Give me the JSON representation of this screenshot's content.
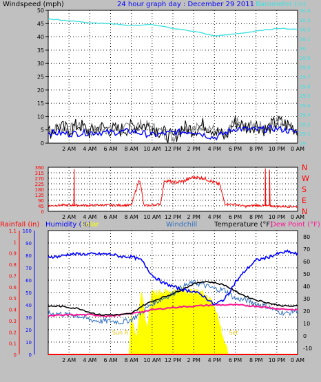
{
  "header": {
    "left_label": "Windspeed (mph)",
    "center_title": "24 hour graph day : December 29 2011",
    "right_label": "Barometer (in)"
  },
  "bottom_header": {
    "rainfall": "Rainfall (in)",
    "humidity": "Humidity (%)",
    "solar": "Solar",
    "windchill": "Windchill",
    "temperature": "Temperature (°F)",
    "dewpoint": "Dew Point (°F)"
  },
  "annotations": {
    "sunrise": "Sun R",
    "sunset": "Set"
  },
  "colors": {
    "background": "#c0c0c0",
    "plot_bg": "#ffffff",
    "wind": "#000000",
    "wind_avg": "#0000ff",
    "gust_shadow": "#808080",
    "barometer": "#40e0e0",
    "direction": "#ff0000",
    "humidity": "#0000ff",
    "temperature": "#000000",
    "windchill": "#3070c0",
    "dewpoint": "#ff1493",
    "solar": "#ffff00",
    "rainfall": "#ff0000"
  },
  "chart_data": [
    {
      "type": "line",
      "x_ticks": [
        "2 AM",
        "4 AM",
        "6 AM",
        "8 AM",
        "10 AM",
        "12 PM",
        "2 PM",
        "4 PM",
        "6 PM",
        "8 PM",
        "10 PM",
        "0 AM"
      ],
      "left_axis": {
        "label": "Windspeed (mph)",
        "ylim": [
          0,
          50
        ],
        "ticks": [
          0,
          5,
          10,
          15,
          20,
          25,
          30,
          35,
          40,
          45,
          50
        ]
      },
      "right_axis": {
        "label": "Barometer (in)",
        "ylim": [
          29.0,
          30.4
        ],
        "ticks": [
          "29",
          "29.1",
          "29.2",
          "29.3",
          "29.4",
          "29.5",
          "29.6",
          "29.7",
          "29.8",
          "29.9",
          "30",
          "30.1",
          "30.2",
          "30.3",
          "30.4"
        ]
      },
      "series": [
        {
          "name": "Barometer (in)",
          "axis": "right",
          "x": [
            0,
            2,
            4,
            6,
            8,
            10,
            12,
            14,
            16,
            18,
            20,
            22,
            24
          ],
          "values": [
            30.31,
            30.29,
            30.27,
            30.26,
            30.24,
            30.25,
            30.21,
            30.18,
            30.13,
            30.15,
            30.18,
            30.21,
            30.2
          ]
        },
        {
          "name": "Windspeed (mph)",
          "axis": "left",
          "x": [
            0,
            1,
            2,
            3,
            4,
            5,
            6,
            7,
            8,
            9,
            10,
            11,
            12,
            13,
            14,
            15,
            16,
            17,
            18,
            19,
            20,
            21,
            22,
            23,
            24
          ],
          "values": [
            4,
            6,
            5,
            7,
            4,
            6,
            5,
            5,
            6,
            7,
            6,
            4,
            2,
            6,
            5,
            7,
            5,
            2,
            8,
            6,
            7,
            5,
            8,
            7,
            5
          ]
        },
        {
          "name": "Wind average",
          "axis": "left",
          "x": [
            0,
            2,
            4,
            6,
            8,
            10,
            12,
            14,
            16,
            18,
            20,
            22,
            24
          ],
          "values": [
            4,
            3.5,
            4,
            4,
            4.5,
            3,
            4,
            4.5,
            2,
            5.5,
            5,
            5.5,
            4
          ]
        }
      ],
      "grid": true
    },
    {
      "type": "line",
      "x_ticks": [
        "2 AM",
        "4 AM",
        "6 AM",
        "8 AM",
        "10 AM",
        "12 PM",
        "2 PM",
        "4 PM",
        "6 PM",
        "8 PM",
        "10 PM",
        "0 AM"
      ],
      "left_axis": {
        "ylim": [
          0,
          360
        ],
        "ticks": [
          0,
          45,
          90,
          135,
          180,
          225,
          270,
          315,
          360
        ]
      },
      "right_axis": {
        "ticks": [
          "N",
          "W",
          "S",
          "E",
          "N"
        ]
      },
      "series": [
        {
          "name": "Wind direction",
          "axis": "left",
          "x": [
            0,
            1,
            2,
            3,
            4,
            5,
            6,
            7,
            8,
            8.8,
            9.2,
            10,
            10.8,
            11.2,
            12,
            13,
            14,
            15,
            16,
            16.5,
            17,
            18,
            19,
            20,
            21,
            22,
            23,
            24
          ],
          "values": [
            45,
            50,
            50,
            50,
            48,
            52,
            50,
            50,
            50,
            270,
            45,
            50,
            60,
            255,
            235,
            245,
            280,
            270,
            235,
            220,
            60,
            55,
            40,
            50,
            45,
            40,
            40,
            38
          ]
        }
      ],
      "grid": true
    },
    {
      "type": "line",
      "x_ticks": [
        "2 AM",
        "4 AM",
        "6 AM",
        "8 AM",
        "10 AM",
        "12 PM",
        "2 PM",
        "4 PM",
        "6 PM",
        "8 PM",
        "10 PM",
        "0 AM"
      ],
      "left_axis": {
        "label": "Rainfall (in)",
        "ylim": [
          0,
          1.1
        ],
        "ticks": [
          0,
          0.1,
          0.2,
          0.3,
          0.4,
          0.5,
          0.6,
          0.7,
          0.8,
          0.9,
          1,
          1.1
        ]
      },
      "left_axis_2": {
        "label": "Humidity (%)",
        "ylim": [
          0,
          100
        ],
        "ticks": [
          0,
          10,
          20,
          30,
          40,
          50,
          60,
          70,
          80,
          90,
          100
        ]
      },
      "right_axis": {
        "label": "Temperature (°F)",
        "ylim": [
          -15,
          85
        ],
        "ticks": [
          -10,
          0,
          10,
          20,
          30,
          40,
          50,
          60,
          70,
          80
        ]
      },
      "series": [
        {
          "name": "Humidity (%)",
          "axis": "humidity",
          "x": [
            0,
            1,
            2,
            3,
            4,
            5,
            6,
            7,
            8,
            9,
            10,
            11,
            12,
            13,
            14,
            15,
            16,
            17,
            18,
            19,
            20,
            21,
            22,
            23,
            24
          ],
          "values": [
            79,
            79,
            81,
            81,
            81,
            81,
            81,
            79,
            79,
            76,
            64,
            58,
            55,
            52,
            51,
            47,
            40,
            45,
            58,
            68,
            76,
            78,
            81,
            83,
            81
          ]
        },
        {
          "name": "Temperature (°F)",
          "axis": "temp",
          "x": [
            0,
            1,
            2,
            3,
            4,
            5,
            6,
            7,
            8,
            9,
            10,
            11,
            12,
            13,
            14,
            15,
            16,
            17,
            18,
            19,
            20,
            21,
            22,
            23,
            24
          ],
          "values": [
            24,
            24,
            23,
            22,
            19,
            17,
            17,
            17,
            18,
            24,
            28,
            31,
            34,
            38,
            42,
            44,
            43,
            41,
            36,
            32,
            29,
            27,
            25,
            24,
            24
          ]
        },
        {
          "name": "Windchill",
          "axis": "temp",
          "x": [
            0,
            1,
            2,
            3,
            4,
            5,
            6,
            7,
            8,
            9,
            10,
            11,
            12,
            13,
            14,
            15,
            16,
            17,
            18,
            19,
            20,
            21,
            22,
            23,
            24
          ],
          "values": [
            18,
            18,
            17,
            16,
            13,
            12,
            12,
            11,
            13,
            19,
            26,
            30,
            34,
            40,
            43,
            41,
            38,
            37,
            30,
            29,
            26,
            24,
            20,
            18,
            21
          ]
        },
        {
          "name": "Dew Point (°F)",
          "axis": "temp",
          "x": [
            0,
            2,
            4,
            6,
            8,
            10,
            12,
            14,
            16,
            18,
            20,
            22,
            24
          ],
          "values": [
            16,
            17,
            17,
            16,
            18,
            21,
            23,
            24,
            25,
            25,
            24,
            22,
            21
          ]
        },
        {
          "name": "Solar",
          "axis": "humidity",
          "type": "area",
          "x": [
            7.8,
            8,
            8.5,
            9,
            9.5,
            10,
            11,
            12,
            13,
            14,
            15,
            16,
            17,
            17.3
          ],
          "values": [
            3,
            30,
            15,
            48,
            20,
            50,
            50,
            51,
            52,
            50,
            50,
            40,
            8,
            0
          ]
        },
        {
          "name": "Rainfall (in)",
          "axis": "left",
          "x": [
            0,
            24
          ],
          "values": [
            0,
            0
          ]
        }
      ],
      "grid": true
    }
  ]
}
